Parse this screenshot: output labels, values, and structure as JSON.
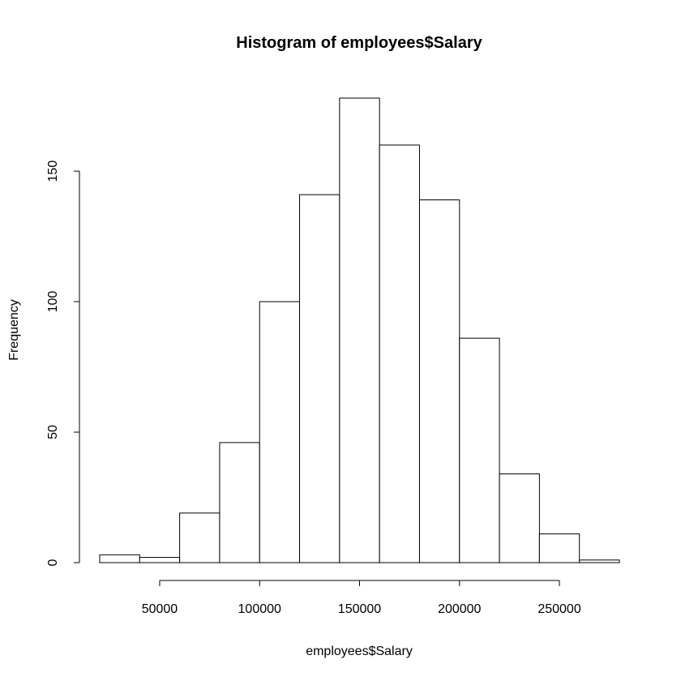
{
  "chart_data": {
    "type": "bar",
    "title": "Histogram of employees$Salary",
    "xlabel": "employees$Salary",
    "ylabel": "Frequency",
    "bin_edges": [
      20000,
      40000,
      60000,
      80000,
      100000,
      120000,
      140000,
      160000,
      180000,
      200000,
      220000,
      240000,
      260000,
      280000
    ],
    "values": [
      3,
      2,
      19,
      46,
      100,
      141,
      178,
      160,
      139,
      86,
      34,
      11,
      1
    ],
    "xlim": [
      20000,
      280000
    ],
    "ylim": [
      0,
      178
    ],
    "x_ticks": [
      50000,
      100000,
      150000,
      200000,
      250000
    ],
    "x_tick_labels": [
      "50000",
      "100000",
      "150000",
      "200000",
      "250000"
    ],
    "y_ticks": [
      0,
      50,
      100,
      150
    ],
    "y_tick_labels": [
      "0",
      "50",
      "100",
      "150"
    ],
    "grid": false,
    "bar_fill": "#ffffff",
    "bar_stroke": "#000000"
  }
}
